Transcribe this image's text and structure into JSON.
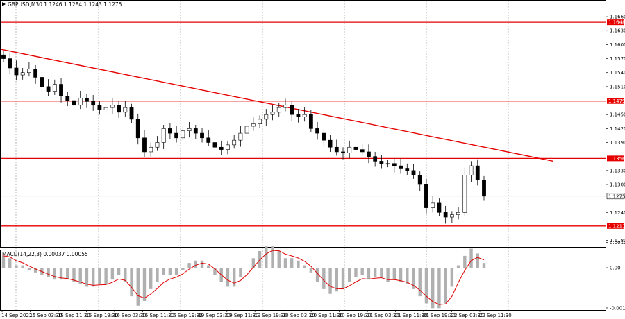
{
  "chart_data": [
    {
      "type": "candlestick",
      "title": "GBPUSD,M30  1.1246 1.1284 1.1243 1.1275",
      "ylim": [
        1.1175,
        1.1675
      ],
      "y_ticks": [
        "1.1660",
        "1.1630",
        "1.1600",
        "1.1570",
        "1.1540",
        "1.1510",
        "1.1450",
        "1.1420",
        "1.1390",
        "1.1330",
        "1.1300",
        "1.1240",
        "1.1180"
      ],
      "x_labels": [
        "14 Sep 2022",
        "15 Sep 03:30",
        "15 Sep 11:30",
        "15 Sep 19:30",
        "16 Sep 03:30",
        "16 Sep 11:30",
        "16 Sep 19:30",
        "19 Sep 03:30",
        "19 Sep 11:30",
        "19 Sep 19:30",
        "20 Sep 03:30",
        "20 Sep 11:30",
        "20 Sep 19:30",
        "21 Sep 03:30",
        "21 Sep 11:30",
        "21 Sep 19:30",
        "22 Sep 03:30",
        "22 Sep 11:30"
      ],
      "grid": "vertical dotted",
      "levels": [
        {
          "value": 1.1648,
          "label": "1.1648"
        },
        {
          "value": 1.1479,
          "label": "1.1479"
        },
        {
          "value": 1.1356,
          "label": "1.1356"
        },
        {
          "value": 1.1211,
          "label": "1.1211"
        }
      ],
      "current_price": {
        "value": 1.1275,
        "label": "1.1275"
      },
      "trendline": {
        "from_value": 1.159,
        "to_value": 1.135
      },
      "close": [
        1.157,
        1.155,
        1.1535,
        1.154,
        1.1548,
        1.153,
        1.151,
        1.15,
        1.1515,
        1.149,
        1.148,
        1.147,
        1.1485,
        1.1478,
        1.147,
        1.146,
        1.1465,
        1.147,
        1.1455,
        1.1465,
        1.144,
        1.14,
        1.137,
        1.138,
        1.139,
        1.142,
        1.141,
        1.14,
        1.1415,
        1.142,
        1.141,
        1.14,
        1.139,
        1.138,
        1.1375,
        1.1385,
        1.1395,
        1.141,
        1.1425,
        1.143,
        1.144,
        1.145,
        1.1455,
        1.1465,
        1.147,
        1.145,
        1.1445,
        1.145,
        1.142,
        1.141,
        1.1395,
        1.138,
        1.137,
        1.1368,
        1.138,
        1.1375,
        1.137,
        1.136,
        1.135,
        1.1345,
        1.1345,
        1.134,
        1.1335,
        1.133,
        1.132,
        1.13,
        1.125,
        1.126,
        1.124,
        1.123,
        1.1235,
        1.124,
        1.132,
        1.134,
        1.131,
        1.1275
      ],
      "macd": {
        "label": "MACD(14,22,3) 0.00037 0.00055",
        "ylim": [
          -0.00175,
          0.0007
        ],
        "y_ticks": [
          "0.00106",
          "0.00",
          "-0.00169"
        ],
        "histogram": [
          0.0005,
          0.0004,
          0.0001,
          0.0001,
          -0.0001,
          -0.0002,
          -0.0003,
          -0.0004,
          -0.0005,
          -0.0005,
          -0.0005,
          -0.0006,
          -0.0007,
          -0.0008,
          -0.0008,
          -0.0007,
          -0.0007,
          -0.0005,
          -0.0003,
          -0.0006,
          -0.0012,
          -0.0016,
          -0.0014,
          -0.0009,
          -0.0006,
          -0.0003,
          -0.0003,
          -0.0003,
          -0.0001,
          0.0002,
          0.0003,
          0.0003,
          0.0001,
          -0.0003,
          -0.0006,
          -0.0008,
          -0.0008,
          -0.0004,
          0.0,
          0.0004,
          0.0007,
          0.0009,
          0.0009,
          0.0007,
          0.0004,
          0.0004,
          0.0003,
          0.0001,
          -0.0002,
          -0.0006,
          -0.0009,
          -0.0011,
          -0.001,
          -0.0009,
          -0.0006,
          -0.0004,
          -0.0003,
          -0.0005,
          -0.0004,
          -0.0004,
          -0.0006,
          -0.0005,
          -0.0006,
          -0.0007,
          -0.0009,
          -0.0012,
          -0.0015,
          -0.0017,
          -0.0017,
          -0.0015,
          -0.0008,
          0.0001,
          0.0005,
          0.0008,
          0.0006,
          0.0002
        ],
        "signal_color": "#e00000",
        "histogram_color": "#b0b0b0"
      }
    }
  ],
  "colors": {
    "level_line": "#e60000",
    "trendline": "#e60000",
    "candle": "#000000",
    "label_bg": "#e60000",
    "price_label_bg": "#ffffff",
    "grid": "#9a9a9a"
  }
}
